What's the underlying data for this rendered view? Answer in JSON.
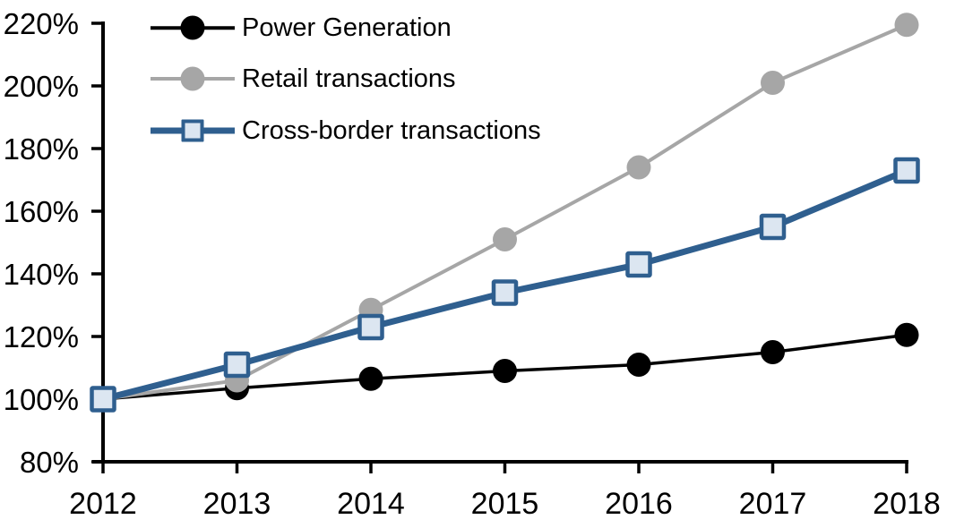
{
  "chart_data": {
    "type": "line",
    "title": "",
    "xlabel": "",
    "ylabel": "",
    "grid": false,
    "x": [
      2012,
      2013,
      2014,
      2015,
      2016,
      2017,
      2018
    ],
    "x_tick_labels": [
      "2012",
      "2013",
      "2014",
      "2015",
      "2016",
      "2017",
      "2018"
    ],
    "y_axis": {
      "min": 80,
      "max": 220,
      "step": 20,
      "tick_labels": [
        "80%",
        "100%",
        "120%",
        "140%",
        "160%",
        "180%",
        "200%",
        "220%"
      ],
      "unit": "%"
    },
    "series": [
      {
        "name": "Power Generation",
        "values": [
          100,
          103.5,
          106.5,
          109,
          111,
          115,
          120.5
        ],
        "color": "#000000",
        "marker": "circle",
        "marker_fill": "#000000",
        "line_width": 3.5
      },
      {
        "name": "Retail transactions",
        "values": [
          100,
          106,
          128.5,
          151,
          174,
          201,
          219.5
        ],
        "color": "#A6A6A6",
        "marker": "circle",
        "marker_fill": "#A6A6A6",
        "line_width": 4
      },
      {
        "name": "Cross-border transactions",
        "values": [
          100,
          111,
          123,
          134,
          143,
          155,
          173
        ],
        "color": "#2F5F8F",
        "marker": "square",
        "marker_fill": "#DCE6F1",
        "line_width": 7
      }
    ],
    "legend": {
      "position": "top-left",
      "items": [
        "Power Generation",
        "Retail transactions",
        "Cross-border transactions"
      ]
    }
  },
  "colors": {
    "axis": "#000000",
    "text": "#000000",
    "background": "#FFFFFF",
    "accent_blue": "#2F5F8F",
    "accent_blue_fill": "#DCE6F1",
    "gray_series": "#A6A6A6"
  }
}
